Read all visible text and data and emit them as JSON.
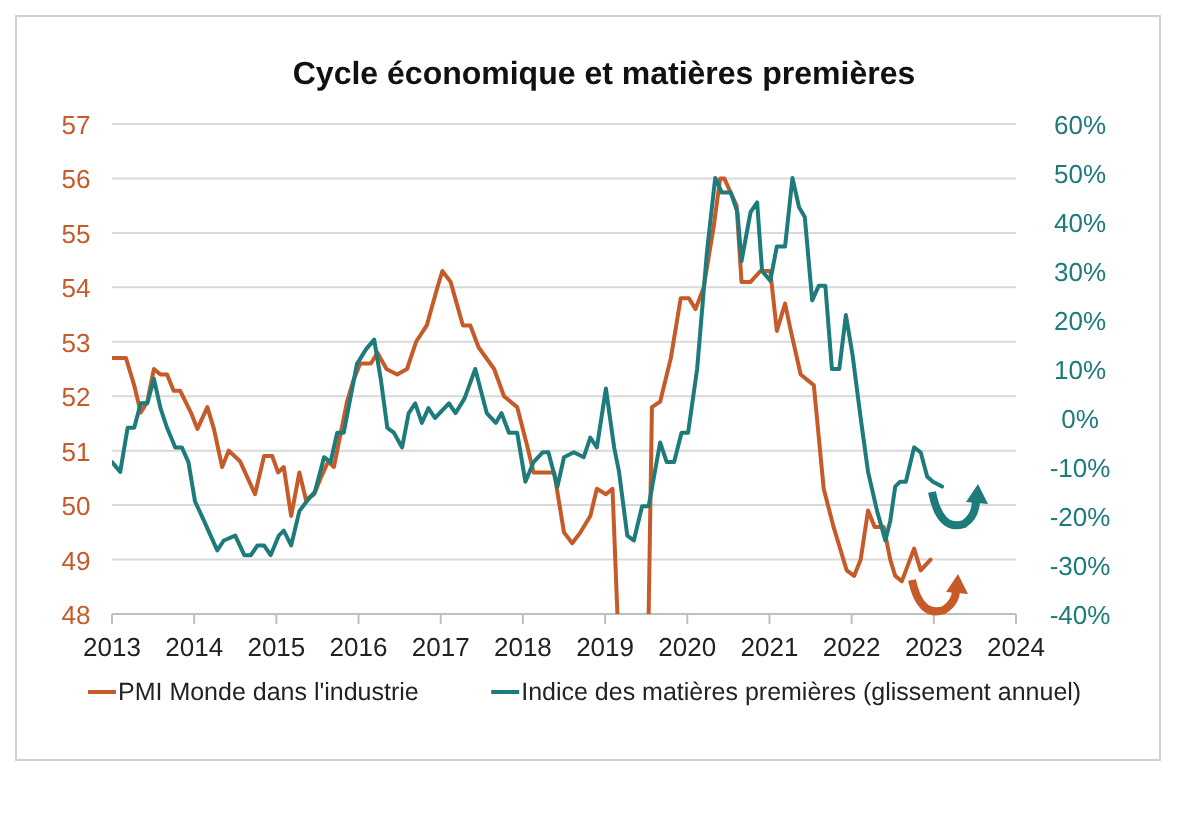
{
  "chart_data": {
    "type": "line",
    "title": "Cycle économique et matières premières",
    "xlim": [
      2013,
      2024
    ],
    "xticks": [
      2013,
      2014,
      2015,
      2016,
      2017,
      2018,
      2019,
      2020,
      2021,
      2022,
      2023,
      2024
    ],
    "ylim": [
      48,
      57
    ],
    "yticks": [
      48,
      49,
      50,
      51,
      52,
      53,
      54,
      55,
      56,
      57
    ],
    "y2lim": [
      -40,
      60
    ],
    "y2ticks": [
      {
        "value": -40,
        "label": "-40%"
      },
      {
        "value": -30,
        "label": "-30%"
      },
      {
        "value": -20,
        "label": "-20%"
      },
      {
        "value": -10,
        "label": "-10%"
      },
      {
        "value": 0,
        "label": "0%"
      },
      {
        "value": 10,
        "label": "10%"
      },
      {
        "value": 20,
        "label": "20%"
      },
      {
        "value": 30,
        "label": "30%"
      },
      {
        "value": 40,
        "label": "40%"
      },
      {
        "value": 50,
        "label": "50%"
      },
      {
        "value": 60,
        "label": "60%"
      }
    ],
    "grid": "y",
    "legend": "bottom",
    "marker": "none",
    "line_style": "solid",
    "series": [
      {
        "name": "PMI Monde dans l'industrie",
        "color": "#c65a28",
        "x": [
          2013.0,
          2013.17,
          2013.27,
          2013.35,
          2013.43,
          2013.51,
          2013.59,
          2013.67,
          2013.75,
          2013.83,
          2013.96,
          2014.04,
          2014.16,
          2014.24,
          2014.34,
          2014.42,
          2014.56,
          2014.74,
          2014.85,
          2014.95,
          2015.02,
          2015.09,
          2015.18,
          2015.28,
          2015.36,
          2015.46,
          2015.54,
          2015.63,
          2015.7,
          2015.78,
          2015.86,
          2015.94,
          2016.02,
          2016.15,
          2016.23,
          2016.34,
          2016.47,
          2016.59,
          2016.7,
          2016.83,
          2016.96,
          2017.02,
          2017.12,
          2017.27,
          2017.36,
          2017.46,
          2017.65,
          2017.77,
          2017.93,
          2018.05,
          2018.13,
          2018.21,
          2018.38,
          2018.5,
          2018.6,
          2018.7,
          2018.82,
          2018.9,
          2019.01,
          2019.09,
          2019.15,
          2019.3,
          2019.53,
          2019.57,
          2019.67,
          2019.8,
          2019.92,
          2020.02,
          2020.1,
          2020.2,
          2020.32,
          2020.4,
          2020.45,
          2020.54,
          2020.6,
          2020.66,
          2020.77,
          2020.89,
          2021.01,
          2021.09,
          2021.19,
          2021.26,
          2021.38,
          2021.46,
          2021.54,
          2021.66,
          2021.78,
          2021.94,
          2022.03,
          2022.11,
          2022.2,
          2022.28,
          2022.39,
          2022.47,
          2022.53,
          2022.61,
          2022.76,
          2022.84,
          2022.96
        ],
        "values": [
          52.7,
          52.7,
          52.2,
          51.7,
          51.9,
          52.5,
          52.4,
          52.4,
          52.1,
          52.1,
          51.7,
          51.4,
          51.8,
          51.4,
          50.7,
          51.0,
          50.8,
          50.2,
          50.9,
          50.9,
          50.6,
          50.7,
          49.8,
          50.6,
          50.1,
          50.2,
          50.5,
          50.8,
          50.7,
          51.3,
          51.9,
          52.3,
          52.6,
          52.6,
          52.8,
          52.5,
          52.4,
          52.5,
          53.0,
          53.3,
          54.0,
          54.3,
          54.1,
          53.3,
          53.3,
          52.9,
          52.5,
          52.0,
          51.8,
          51.1,
          50.6,
          50.6,
          50.6,
          49.5,
          49.3,
          49.5,
          49.8,
          50.3,
          50.2,
          50.3,
          48.0,
          null,
          48.0,
          51.8,
          51.9,
          52.7,
          53.8,
          53.8,
          53.6,
          54.0,
          55.1,
          56.0,
          56.0,
          55.7,
          55.5,
          54.1,
          54.1,
          54.3,
          54.3,
          53.2,
          53.7,
          53.2,
          52.4,
          52.3,
          52.2,
          50.3,
          49.6,
          48.8,
          48.7,
          49.0,
          49.9,
          49.6,
          49.6,
          49.0,
          48.7,
          48.6,
          49.2,
          48.8,
          49.0
        ]
      },
      {
        "name": "Indice des matières premières (glissement annuel)",
        "color": "#1d7b7b",
        "axis": "y2",
        "x": [
          2013.0,
          2013.1,
          2013.19,
          2013.27,
          2013.35,
          2013.43,
          2013.51,
          2013.59,
          2013.67,
          2013.77,
          2013.85,
          2013.93,
          2014.01,
          2014.12,
          2014.2,
          2014.28,
          2014.36,
          2014.5,
          2014.61,
          2014.69,
          2014.77,
          2014.85,
          2014.93,
          2015.03,
          2015.09,
          2015.18,
          2015.28,
          2015.37,
          2015.47,
          2015.58,
          2015.66,
          2015.74,
          2015.82,
          2015.9,
          2015.98,
          2016.09,
          2016.19,
          2016.27,
          2016.35,
          2016.43,
          2016.53,
          2016.61,
          2016.69,
          2016.77,
          2016.85,
          2016.93,
          2017.1,
          2017.18,
          2017.29,
          2017.42,
          2017.56,
          2017.67,
          2017.74,
          2017.83,
          2017.93,
          2018.03,
          2018.13,
          2018.24,
          2018.31,
          2018.42,
          2018.5,
          2018.62,
          2018.74,
          2018.82,
          2018.9,
          2019.01,
          2019.11,
          2019.17,
          2019.27,
          2019.35,
          2019.45,
          2019.53,
          2019.67,
          2019.75,
          2019.84,
          2019.93,
          2020.01,
          2020.12,
          2020.24,
          2020.34,
          2020.42,
          2020.53,
          2020.61,
          2020.66,
          2020.77,
          2020.85,
          2020.91,
          2021.01,
          2021.09,
          2021.19,
          2021.28,
          2021.36,
          2021.43,
          2021.52,
          2021.6,
          2021.68,
          2021.76,
          2021.85,
          2021.93,
          2022.01,
          2022.11,
          2022.2,
          2022.31,
          2022.41,
          2022.47,
          2022.53,
          2022.59,
          2022.66,
          2022.76,
          2022.84,
          2022.92,
          2022.99,
          2023.1
        ],
        "values": [
          -9,
          -11,
          -2,
          -2,
          3,
          3,
          8,
          2,
          -2,
          -6,
          -6,
          -9,
          -17,
          -21,
          -24,
          -27,
          -25,
          -24,
          -28,
          -28,
          -26,
          -26,
          -28,
          -24,
          -23,
          -26,
          -19,
          -17,
          -15,
          -8,
          -9,
          -3,
          -3,
          4,
          11,
          14,
          16,
          8,
          -2,
          -3,
          -6,
          1,
          3,
          -1,
          2,
          0,
          3,
          1,
          4,
          10,
          1,
          -1,
          1,
          -3,
          -3,
          -13,
          -9,
          -7,
          -7,
          -14,
          -8,
          -7,
          -8,
          -4,
          -6,
          6,
          -6,
          -11,
          -24,
          -25,
          -18,
          -18,
          -5,
          -9,
          -9,
          -3,
          -3,
          10,
          34,
          49,
          46,
          46,
          42,
          32,
          42,
          44,
          30,
          28,
          35,
          35,
          49,
          43,
          41,
          24,
          27,
          27,
          10,
          10,
          21,
          13,
          0,
          -11,
          -19,
          -25,
          -21,
          -14,
          -13,
          -13,
          -6,
          -7,
          -12,
          -13,
          -14
        ]
      }
    ]
  }
}
